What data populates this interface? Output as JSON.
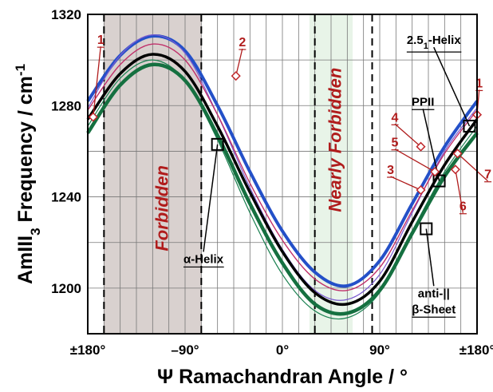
{
  "chart_data": {
    "type": "line",
    "title": "",
    "xlabel": "Ψ Ramachandran Angle / °",
    "ylabel_main": "AmIII",
    "ylabel_sub": "3",
    "ylabel_rest": " Frequency / cm",
    "ylabel_sup": "-1",
    "xlim": [
      -180,
      180
    ],
    "ylim": [
      1180,
      1320
    ],
    "xticks": [
      {
        "value": -180,
        "label": "±180°"
      },
      {
        "value": -90,
        "label": "–90°"
      },
      {
        "value": 0,
        "label": "0°"
      },
      {
        "value": 90,
        "label": "90°"
      },
      {
        "value": 180,
        "label": "±180°"
      }
    ],
    "yticks": [
      {
        "value": 1200,
        "label": "1200"
      },
      {
        "value": 1240,
        "label": "1240"
      },
      {
        "value": 1280,
        "label": "1280"
      },
      {
        "value": 1320,
        "label": "1320"
      }
    ],
    "grid": true,
    "regions": [
      {
        "label": "Forbidden",
        "x": [
          -165,
          -75
        ],
        "fill": "#d9d1cf",
        "label_x": -110,
        "label_y": 1235
      },
      {
        "label": "Nearly Forbidden",
        "x": [
          25,
          65
        ],
        "fill": "#e8f4e8",
        "label_x": 50,
        "label_y": 1265
      }
    ],
    "series": [
      {
        "color": "#2450c8",
        "width": 4.0,
        "points": [
          [
            -180,
            1282
          ],
          [
            -150,
            1302
          ],
          [
            -120,
            1310.5
          ],
          [
            -90,
            1304
          ],
          [
            -60,
            1280
          ],
          [
            -30,
            1251
          ],
          [
            0,
            1225
          ],
          [
            30,
            1207
          ],
          [
            60,
            1201
          ],
          [
            90,
            1212
          ],
          [
            120,
            1237
          ],
          [
            150,
            1262
          ],
          [
            180,
            1282
          ]
        ]
      },
      {
        "color": "#7a5ad0",
        "width": 1.2,
        "points": [
          [
            -180,
            1279
          ],
          [
            -150,
            1302
          ],
          [
            -120,
            1311
          ],
          [
            -90,
            1303
          ],
          [
            -60,
            1276
          ],
          [
            -30,
            1244
          ],
          [
            0,
            1217
          ],
          [
            30,
            1199
          ],
          [
            60,
            1195
          ],
          [
            90,
            1206
          ],
          [
            120,
            1233
          ],
          [
            150,
            1260
          ],
          [
            180,
            1279
          ]
        ]
      },
      {
        "color": "#c0306a",
        "width": 1.4,
        "points": [
          [
            -180,
            1278
          ],
          [
            -150,
            1298
          ],
          [
            -120,
            1307
          ],
          [
            -90,
            1300
          ],
          [
            -60,
            1276
          ],
          [
            -30,
            1246
          ],
          [
            0,
            1221
          ],
          [
            30,
            1204
          ],
          [
            60,
            1199
          ],
          [
            90,
            1209
          ],
          [
            120,
            1234
          ],
          [
            150,
            1259
          ],
          [
            180,
            1278
          ]
        ]
      },
      {
        "color": "#000000",
        "width": 3.5,
        "points": [
          [
            -180,
            1274
          ],
          [
            -150,
            1294
          ],
          [
            -120,
            1302.5
          ],
          [
            -90,
            1295
          ],
          [
            -60,
            1271
          ],
          [
            -30,
            1242
          ],
          [
            0,
            1216
          ],
          [
            30,
            1198
          ],
          [
            60,
            1193
          ],
          [
            90,
            1203
          ],
          [
            120,
            1229
          ],
          [
            150,
            1254
          ],
          [
            180,
            1274
          ]
        ]
      },
      {
        "color": "#1a8050",
        "width": 1.2,
        "points": [
          [
            -180,
            1271
          ],
          [
            -150,
            1292
          ],
          [
            -120,
            1300
          ],
          [
            -90,
            1291
          ],
          [
            -60,
            1265
          ],
          [
            -30,
            1233
          ],
          [
            0,
            1206
          ],
          [
            30,
            1190
          ],
          [
            60,
            1187
          ],
          [
            90,
            1198
          ],
          [
            120,
            1225
          ],
          [
            150,
            1251
          ],
          [
            180,
            1271
          ]
        ]
      },
      {
        "color": "#157040",
        "width": 4.5,
        "points": [
          [
            -180,
            1268
          ],
          [
            -150,
            1289
          ],
          [
            -120,
            1298
          ],
          [
            -90,
            1291
          ],
          [
            -60,
            1267
          ],
          [
            -30,
            1237
          ],
          [
            0,
            1211
          ],
          [
            30,
            1193
          ],
          [
            60,
            1189
          ],
          [
            90,
            1199
          ],
          [
            120,
            1224
          ],
          [
            150,
            1249
          ],
          [
            180,
            1268
          ]
        ]
      }
    ],
    "points": [
      {
        "label": "1",
        "x": -175,
        "y": 1275,
        "label_x": -168,
        "label_y": 1307
      },
      {
        "label": "1",
        "x": 180,
        "y": 1276,
        "label_x": 182,
        "label_y": 1288
      },
      {
        "label": "2",
        "x": -43,
        "y": 1293,
        "label_x": -37,
        "label_y": 1306
      },
      {
        "label": "3",
        "x": 128,
        "y": 1243,
        "label_x": 100,
        "label_y": 1250
      },
      {
        "label": "4",
        "x": 128,
        "y": 1262,
        "label_x": 104,
        "label_y": 1273
      },
      {
        "label": "5",
        "x": 141,
        "y": 1251,
        "label_x": 104,
        "label_y": 1262
      },
      {
        "label": "6",
        "x": 160,
        "y": 1252,
        "label_x": 167,
        "label_y": 1234
      },
      {
        "label": "7",
        "x": 162,
        "y": 1259,
        "label_x": 190,
        "label_y": 1248
      }
    ],
    "structures": [
      {
        "label": "α-Helix",
        "x": -60,
        "y": 1263,
        "label_x": -73,
        "label_y": 1211
      },
      {
        "label": "PPII",
        "x": 145,
        "y": 1247,
        "label_x": 130,
        "label_y": 1280
      },
      {
        "label": "2.5",
        "label_sub": "1",
        "label_rest": "-Helix",
        "x": 173,
        "y": 1271,
        "label_x": 140,
        "label_y": 1307
      },
      {
        "label": "anti-||",
        "label_line2": "β-Sheet",
        "x": 133,
        "y": 1226,
        "label_x": 140,
        "label_y": 1196
      }
    ],
    "dashed_lines": [
      -165,
      -75,
      30,
      83
    ]
  }
}
